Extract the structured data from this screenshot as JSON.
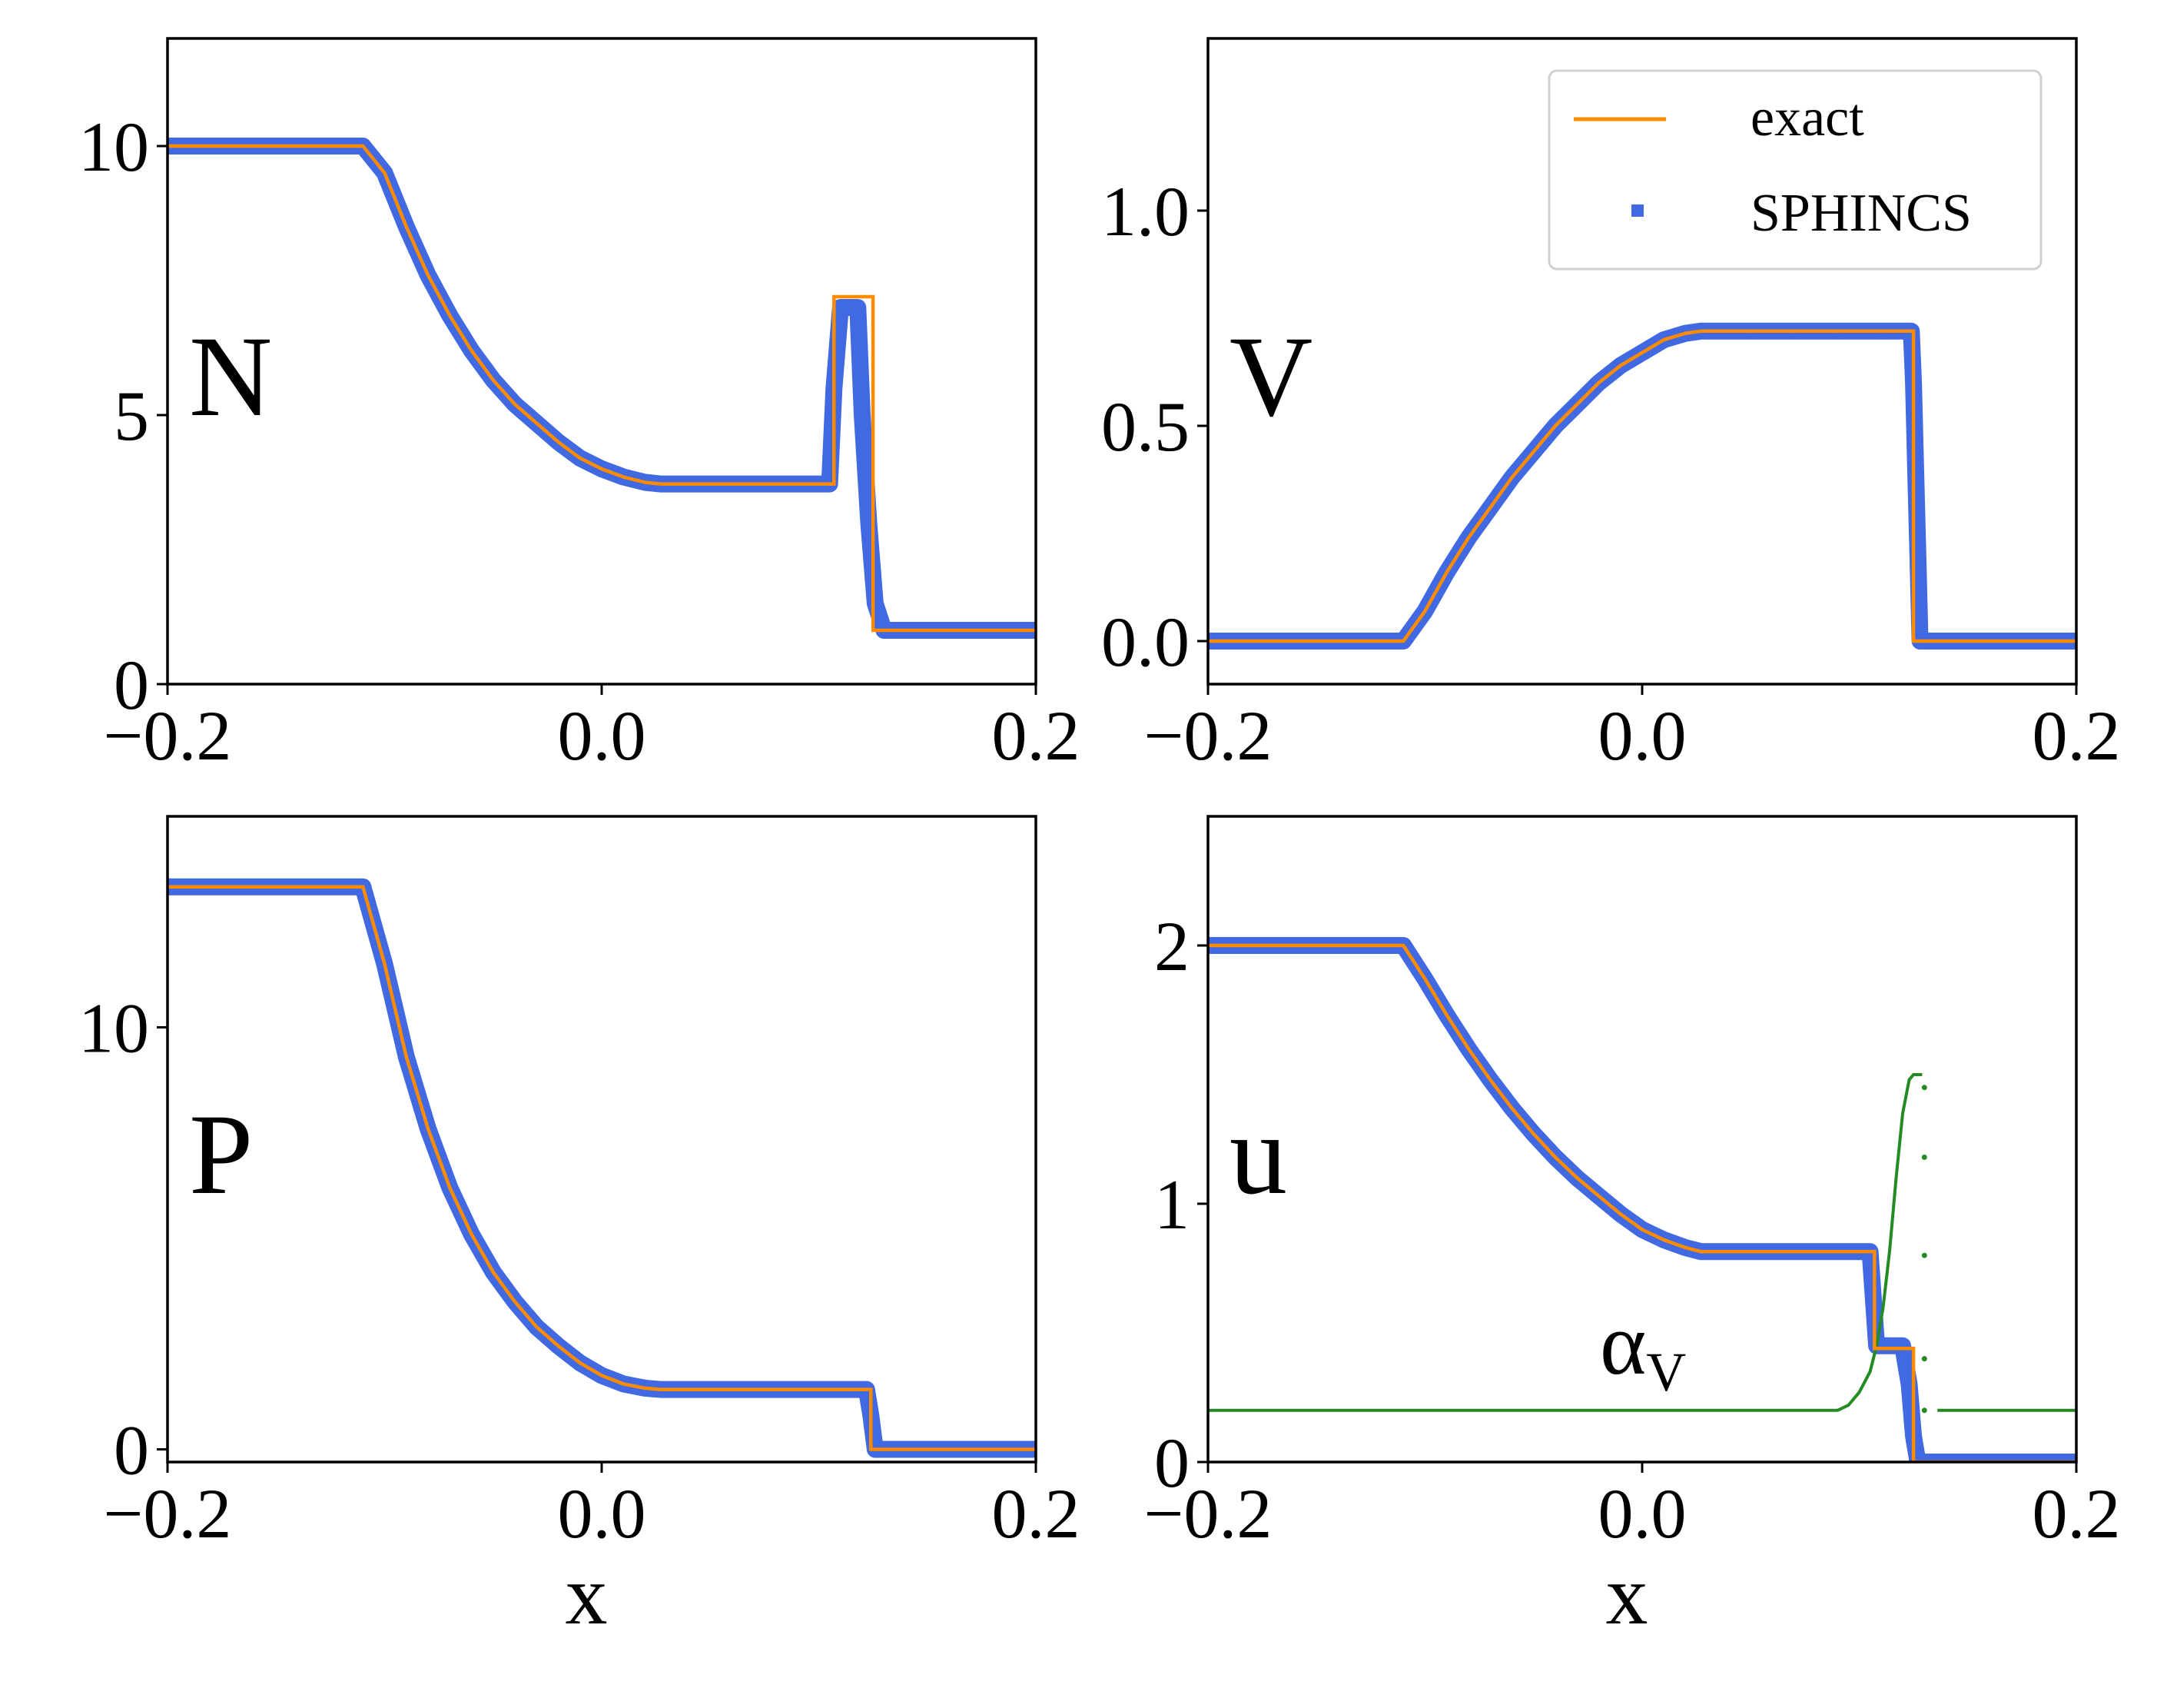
{
  "colors": {
    "exact": "#ff8c00",
    "sphincs": "#4169e1",
    "alpha": "#228b22",
    "axis": "#000000"
  },
  "legend": {
    "exact_label": "exact",
    "sphincs_label": "SPHINCS",
    "placement": "upper-right of panel V"
  },
  "chart_data": [
    {
      "type": "line",
      "panel_label": "N",
      "xlabel": "",
      "ylabel": "",
      "xlim": [
        -0.2,
        0.2
      ],
      "ylim": [
        0,
        12
      ],
      "xticks": [
        -0.2,
        0.0,
        0.2
      ],
      "xtick_labels": [
        "−0.2",
        "0.0",
        "0.2"
      ],
      "yticks": [
        0,
        5,
        10
      ],
      "ytick_labels": [
        "0",
        "5",
        "10"
      ],
      "series": [
        {
          "name": "exact",
          "style": "line",
          "x": [
            -0.2,
            -0.11,
            -0.1,
            -0.09,
            -0.08,
            -0.07,
            -0.06,
            -0.05,
            -0.04,
            -0.03,
            -0.02,
            -0.01,
            0.0,
            0.01,
            0.02,
            0.027,
            0.03,
            0.05,
            0.07,
            0.09,
            0.107,
            0.107,
            0.125,
            0.125,
            0.2
          ],
          "y": [
            10,
            10,
            9.5,
            8.5,
            7.6,
            6.85,
            6.2,
            5.65,
            5.2,
            4.85,
            4.5,
            4.2,
            4.0,
            3.85,
            3.75,
            3.72,
            3.72,
            3.72,
            3.72,
            3.72,
            3.72,
            7.2,
            7.2,
            1.0,
            1.0
          ]
        },
        {
          "name": "SPHINCS",
          "style": "markers",
          "x": [
            -0.2,
            -0.11,
            -0.1,
            -0.09,
            -0.08,
            -0.07,
            -0.06,
            -0.05,
            -0.04,
            -0.03,
            -0.02,
            -0.01,
            0.0,
            0.01,
            0.02,
            0.027,
            0.03,
            0.05,
            0.07,
            0.09,
            0.105,
            0.107,
            0.11,
            0.118,
            0.12,
            0.123,
            0.126,
            0.13,
            0.2
          ],
          "y": [
            10,
            10,
            9.5,
            8.5,
            7.6,
            6.85,
            6.2,
            5.65,
            5.2,
            4.85,
            4.5,
            4.2,
            4.0,
            3.85,
            3.75,
            3.72,
            3.72,
            3.72,
            3.72,
            3.72,
            3.72,
            5.5,
            7.0,
            7.0,
            5.0,
            3.0,
            1.5,
            1.0,
            1.0
          ]
        }
      ]
    },
    {
      "type": "line",
      "panel_label": "V",
      "xlabel": "",
      "ylabel": "",
      "xlim": [
        -0.2,
        0.2
      ],
      "ylim": [
        -0.1,
        1.4
      ],
      "xticks": [
        -0.2,
        0.0,
        0.2
      ],
      "xtick_labels": [
        "−0.2",
        "0.0",
        "0.2"
      ],
      "yticks": [
        0.0,
        0.5,
        1.0
      ],
      "ytick_labels": [
        "0.0",
        "0.5",
        "1.0"
      ],
      "series": [
        {
          "name": "exact",
          "style": "line",
          "x": [
            -0.2,
            -0.11,
            -0.1,
            -0.09,
            -0.08,
            -0.07,
            -0.06,
            -0.05,
            -0.04,
            -0.03,
            -0.02,
            -0.01,
            0.0,
            0.01,
            0.02,
            0.027,
            0.05,
            0.07,
            0.09,
            0.11,
            0.125,
            0.125,
            0.2
          ],
          "y": [
            0.0,
            0.0,
            0.07,
            0.16,
            0.24,
            0.31,
            0.38,
            0.44,
            0.5,
            0.55,
            0.6,
            0.64,
            0.67,
            0.7,
            0.715,
            0.72,
            0.72,
            0.72,
            0.72,
            0.72,
            0.72,
            0.0,
            0.0
          ]
        },
        {
          "name": "SPHINCS",
          "style": "markers",
          "x": [
            -0.2,
            -0.11,
            -0.1,
            -0.09,
            -0.08,
            -0.07,
            -0.06,
            -0.05,
            -0.04,
            -0.03,
            -0.02,
            -0.01,
            0.0,
            0.01,
            0.02,
            0.027,
            0.05,
            0.07,
            0.09,
            0.11,
            0.124,
            0.125,
            0.126,
            0.127,
            0.128,
            0.2
          ],
          "y": [
            0.0,
            0.0,
            0.07,
            0.16,
            0.24,
            0.31,
            0.38,
            0.44,
            0.5,
            0.55,
            0.6,
            0.64,
            0.67,
            0.7,
            0.715,
            0.72,
            0.72,
            0.72,
            0.72,
            0.72,
            0.72,
            0.6,
            0.4,
            0.2,
            0.0,
            0.0
          ]
        }
      ]
    },
    {
      "type": "line",
      "panel_label": "P",
      "xlabel": "x",
      "ylabel": "",
      "xlim": [
        -0.2,
        0.2
      ],
      "ylim": [
        -0.3,
        15
      ],
      "xticks": [
        -0.2,
        0.0,
        0.2
      ],
      "xtick_labels": [
        "−0.2",
        "0.0",
        "0.2"
      ],
      "yticks": [
        0,
        10
      ],
      "ytick_labels": [
        "0",
        "10"
      ],
      "series": [
        {
          "name": "exact",
          "style": "line",
          "x": [
            -0.2,
            -0.11,
            -0.1,
            -0.09,
            -0.08,
            -0.07,
            -0.06,
            -0.05,
            -0.04,
            -0.03,
            -0.02,
            -0.01,
            0.0,
            0.01,
            0.02,
            0.027,
            0.05,
            0.07,
            0.09,
            0.11,
            0.124,
            0.124,
            0.2
          ],
          "y": [
            13.33,
            13.33,
            11.5,
            9.3,
            7.6,
            6.2,
            5.1,
            4.2,
            3.5,
            2.9,
            2.45,
            2.05,
            1.75,
            1.55,
            1.45,
            1.42,
            1.42,
            1.42,
            1.42,
            1.42,
            1.42,
            0.0,
            0.0
          ]
        },
        {
          "name": "SPHINCS",
          "style": "markers",
          "x": [
            -0.2,
            -0.11,
            -0.1,
            -0.09,
            -0.08,
            -0.07,
            -0.06,
            -0.05,
            -0.04,
            -0.03,
            -0.02,
            -0.01,
            0.0,
            0.01,
            0.02,
            0.027,
            0.05,
            0.07,
            0.09,
            0.11,
            0.122,
            0.124,
            0.126,
            0.2
          ],
          "y": [
            13.33,
            13.33,
            11.5,
            9.3,
            7.6,
            6.2,
            5.1,
            4.2,
            3.5,
            2.9,
            2.45,
            2.05,
            1.75,
            1.55,
            1.45,
            1.42,
            1.42,
            1.42,
            1.42,
            1.42,
            1.42,
            0.8,
            0.0,
            0.0
          ]
        }
      ]
    },
    {
      "type": "line",
      "panel_label": "u",
      "xlabel": "x",
      "ylabel": "",
      "annotation": {
        "base": "α",
        "subscript": "V"
      },
      "xlim": [
        -0.2,
        0.2
      ],
      "ylim": [
        0,
        2.5
      ],
      "xticks": [
        -0.2,
        0.0,
        0.2
      ],
      "xtick_labels": [
        "−0.2",
        "0.0",
        "0.2"
      ],
      "yticks": [
        0,
        1,
        2
      ],
      "ytick_labels": [
        "0",
        "1",
        "2"
      ],
      "series": [
        {
          "name": "exact",
          "style": "line",
          "x": [
            -0.2,
            -0.11,
            -0.1,
            -0.09,
            -0.08,
            -0.07,
            -0.06,
            -0.05,
            -0.04,
            -0.03,
            -0.02,
            -0.01,
            0.0,
            0.01,
            0.02,
            0.027,
            0.05,
            0.07,
            0.09,
            0.107,
            0.107,
            0.125,
            0.125,
            0.2
          ],
          "y": [
            2.0,
            2.0,
            1.87,
            1.73,
            1.6,
            1.48,
            1.37,
            1.27,
            1.18,
            1.1,
            1.03,
            0.96,
            0.9,
            0.86,
            0.83,
            0.815,
            0.815,
            0.815,
            0.815,
            0.815,
            0.44,
            0.44,
            0.0,
            0.0
          ]
        },
        {
          "name": "SPHINCS",
          "style": "markers",
          "x": [
            -0.2,
            -0.11,
            -0.1,
            -0.09,
            -0.08,
            -0.07,
            -0.06,
            -0.05,
            -0.04,
            -0.03,
            -0.02,
            -0.01,
            0.0,
            0.01,
            0.02,
            0.027,
            0.05,
            0.07,
            0.09,
            0.105,
            0.108,
            0.12,
            0.123,
            0.125,
            0.127,
            0.2
          ],
          "y": [
            2.0,
            2.0,
            1.87,
            1.73,
            1.6,
            1.48,
            1.37,
            1.27,
            1.18,
            1.1,
            1.03,
            0.96,
            0.9,
            0.86,
            0.83,
            0.815,
            0.815,
            0.815,
            0.815,
            0.815,
            0.45,
            0.45,
            0.3,
            0.1,
            0.0,
            0.0
          ]
        },
        {
          "name": "alpha_V",
          "style": "line",
          "x": [
            -0.2,
            0.09,
            0.095,
            0.1,
            0.105,
            0.108,
            0.111,
            0.114,
            0.117,
            0.12,
            0.123,
            0.125,
            0.129
          ],
          "y": [
            0.2,
            0.2,
            0.22,
            0.27,
            0.35,
            0.45,
            0.6,
            0.82,
            1.1,
            1.35,
            1.48,
            1.5,
            1.5
          ]
        },
        {
          "name": "alpha_V_right",
          "style": "line",
          "x": [
            0.136,
            0.2
          ],
          "y": [
            0.2,
            0.2
          ]
        },
        {
          "name": "alpha_V_scatter",
          "style": "dots",
          "x": [
            0.13,
            0.13,
            0.13,
            0.13,
            0.13
          ],
          "y": [
            1.45,
            1.18,
            0.8,
            0.4,
            0.2
          ]
        }
      ]
    }
  ]
}
